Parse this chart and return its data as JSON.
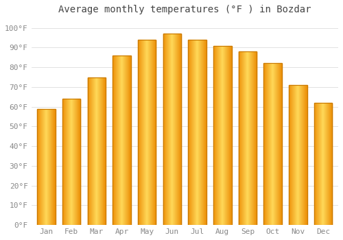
{
  "title": "Average monthly temperatures (°F ) in Bozdar",
  "months": [
    "Jan",
    "Feb",
    "Mar",
    "Apr",
    "May",
    "Jun",
    "Jul",
    "Aug",
    "Sep",
    "Oct",
    "Nov",
    "Dec"
  ],
  "values": [
    59,
    64,
    75,
    86,
    94,
    97,
    94,
    91,
    88,
    82,
    71,
    62
  ],
  "bar_color_center": "#FFD966",
  "bar_color_edge": "#E8920A",
  "bar_color_main": "#FFA500",
  "background_color": "#FFFFFF",
  "plot_bg_color": "#FFFFFF",
  "grid_color": "#DDDDDD",
  "ylim": [
    0,
    105
  ],
  "yticks": [
    0,
    10,
    20,
    30,
    40,
    50,
    60,
    70,
    80,
    90,
    100
  ],
  "title_fontsize": 10,
  "tick_fontsize": 8,
  "tick_color": "#888888",
  "title_color": "#444444",
  "font_family": "monospace",
  "bar_width": 0.72
}
